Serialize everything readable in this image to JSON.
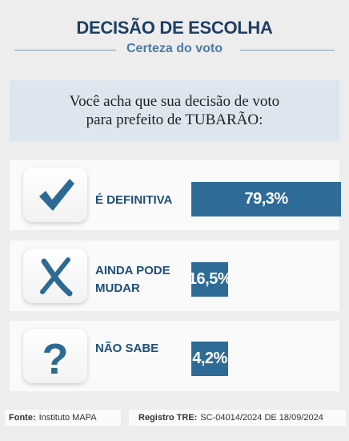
{
  "header": {
    "title": "DECISÃO DE ESCOLHA",
    "subtitle": "Certeza do voto"
  },
  "question": "Você acha que sua decisão de voto\npara prefeito de TUBARÃO:",
  "chart_data": {
    "type": "bar",
    "categories": [
      "É DEFINITIVA",
      "AINDA PODE\nMUDAR",
      "NÃO SABE"
    ],
    "values": [
      79.3,
      16.5,
      4.2
    ],
    "value_labels": [
      "79,3%",
      "16,5%",
      "4,2%"
    ],
    "unit": "%",
    "xlim": [
      0,
      100
    ],
    "bar_color": "#2f6b97"
  },
  "icons": [
    "checkmark-icon",
    "x-mark-icon",
    "question-mark-icon"
  ],
  "icon_color": "#2c6a94",
  "footer": {
    "source_label": "Fonte:",
    "source_value": "Instituto MAPA",
    "registry_label": "Registro TRE:",
    "registry_value": "SC-04014/2024 DE 18/09/2024"
  }
}
